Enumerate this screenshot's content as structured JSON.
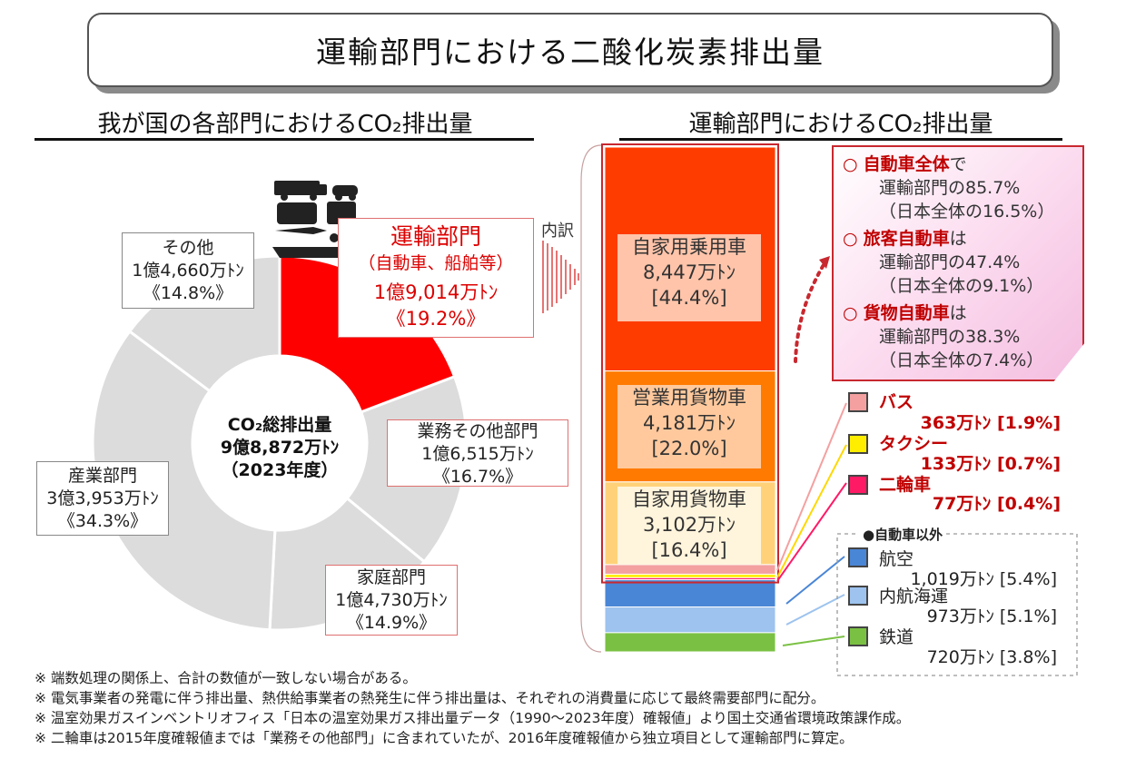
{
  "title": "運輸部門における二酸化炭素排出量",
  "left_title": "我が国の各部門におけるCO₂排出量",
  "right_title": "運輸部門におけるCO₂排出量",
  "center": {
    "line1": "CO₂総排出量",
    "line2": "9億8,872万ﾄﾝ",
    "line3": "（2023年度）"
  },
  "breakdown_label": "内訳",
  "chart_data": [
    {
      "type": "pie",
      "title": "我が国の各部門におけるCO₂排出量",
      "total": "9億8,872万ﾄﾝ",
      "slices": [
        {
          "name": "運輸部門",
          "sub": "（自動車、船舶等）",
          "amount": "1億9,014万ﾄﾝ",
          "share": "《19.2%》",
          "value": 19.2,
          "color": "#ff0000"
        },
        {
          "name": "業務その他部門",
          "amount": "1億6,515万ﾄﾝ",
          "share": "《16.7%》",
          "value": 16.7,
          "color": "#dcdcdc"
        },
        {
          "name": "家庭部門",
          "amount": "1億4,730万ﾄﾝ",
          "share": "《14.9%》",
          "value": 14.9,
          "color": "#dcdcdc"
        },
        {
          "name": "産業部門",
          "amount": "3億3,953万ﾄﾝ",
          "share": "《34.3%》",
          "value": 34.3,
          "color": "#dcdcdc"
        },
        {
          "name": "その他",
          "amount": "1億4,660万ﾄﾝ",
          "share": "《14.8%》",
          "value": 14.8,
          "color": "#dcdcdc"
        }
      ]
    },
    {
      "type": "bar",
      "title": "運輸部門におけるCO₂排出量",
      "stacked": true,
      "segments": [
        {
          "name": "自家用乗用車",
          "amount": "8,447万ﾄﾝ",
          "share": "[44.4%]",
          "value": 44.4,
          "color": "#ff3c00"
        },
        {
          "name": "営業用貨物車",
          "amount": "4,181万ﾄﾝ",
          "share": "[22.0%]",
          "value": 22.0,
          "color": "#ff7a00"
        },
        {
          "name": "自家用貨物車",
          "amount": "3,102万ﾄﾝ",
          "share": "[16.4%]",
          "value": 16.4,
          "color": "#ffd27a"
        },
        {
          "name": "バス",
          "amount": "363万ﾄﾝ",
          "share": "[1.9%]",
          "value": 1.9,
          "color": "#f4a0a0"
        },
        {
          "name": "タクシー",
          "amount": "133万ﾄﾝ",
          "share": "[0.7%]",
          "value": 0.7,
          "color": "#ffee00"
        },
        {
          "name": "二輪車",
          "amount": "77万ﾄﾝ",
          "share": "[0.4%]",
          "value": 0.4,
          "color": "#ff1a66"
        },
        {
          "name": "航空",
          "amount": "1,019万ﾄﾝ",
          "share": "[5.4%]",
          "value": 5.4,
          "color": "#4a86d6"
        },
        {
          "name": "内航海運",
          "amount": "973万ﾄﾝ",
          "share": "[5.1%]",
          "value": 5.1,
          "color": "#9dc3ee"
        },
        {
          "name": "鉄道",
          "amount": "720万ﾄﾝ",
          "share": "[3.8%]",
          "value": 3.8,
          "color": "#7ac143"
        }
      ]
    }
  ],
  "callout": [
    {
      "bullet": "○",
      "bold": "自動車全体",
      "tail": "で",
      "line2": "運輸部門の85.7%",
      "line3": "（日本全体の16.5%）"
    },
    {
      "bullet": "○",
      "bold": "旅客自動車",
      "tail": "は",
      "line2": "運輸部門の47.4%",
      "line3": "（日本全体の9.1%）"
    },
    {
      "bullet": "○",
      "bold": "貨物自動車",
      "tail": "は",
      "line2": "運輸部門の38.3%",
      "line3": "（日本全体の7.4%）"
    }
  ],
  "non_auto_label": "●自動車以外",
  "notes": [
    "※ 端数処理の関係上、合計の数値が一致しない場合がある。",
    "※ 電気事業者の発電に伴う排出量、熱供給事業者の熱発生に伴う排出量は、それぞれの消費量に応じて最終需要部門に配分。",
    "※ 温室効果ガスインベントリオフィス「日本の温室効果ガス排出量データ（1990～2023年度）確報値」より国土交通省環境政策課作成。",
    "※ 二輪車は2015年度確報値までは「業務その他部門」に含まれていたが、2016年度確報値から独立項目として運輸部門に算定。"
  ]
}
